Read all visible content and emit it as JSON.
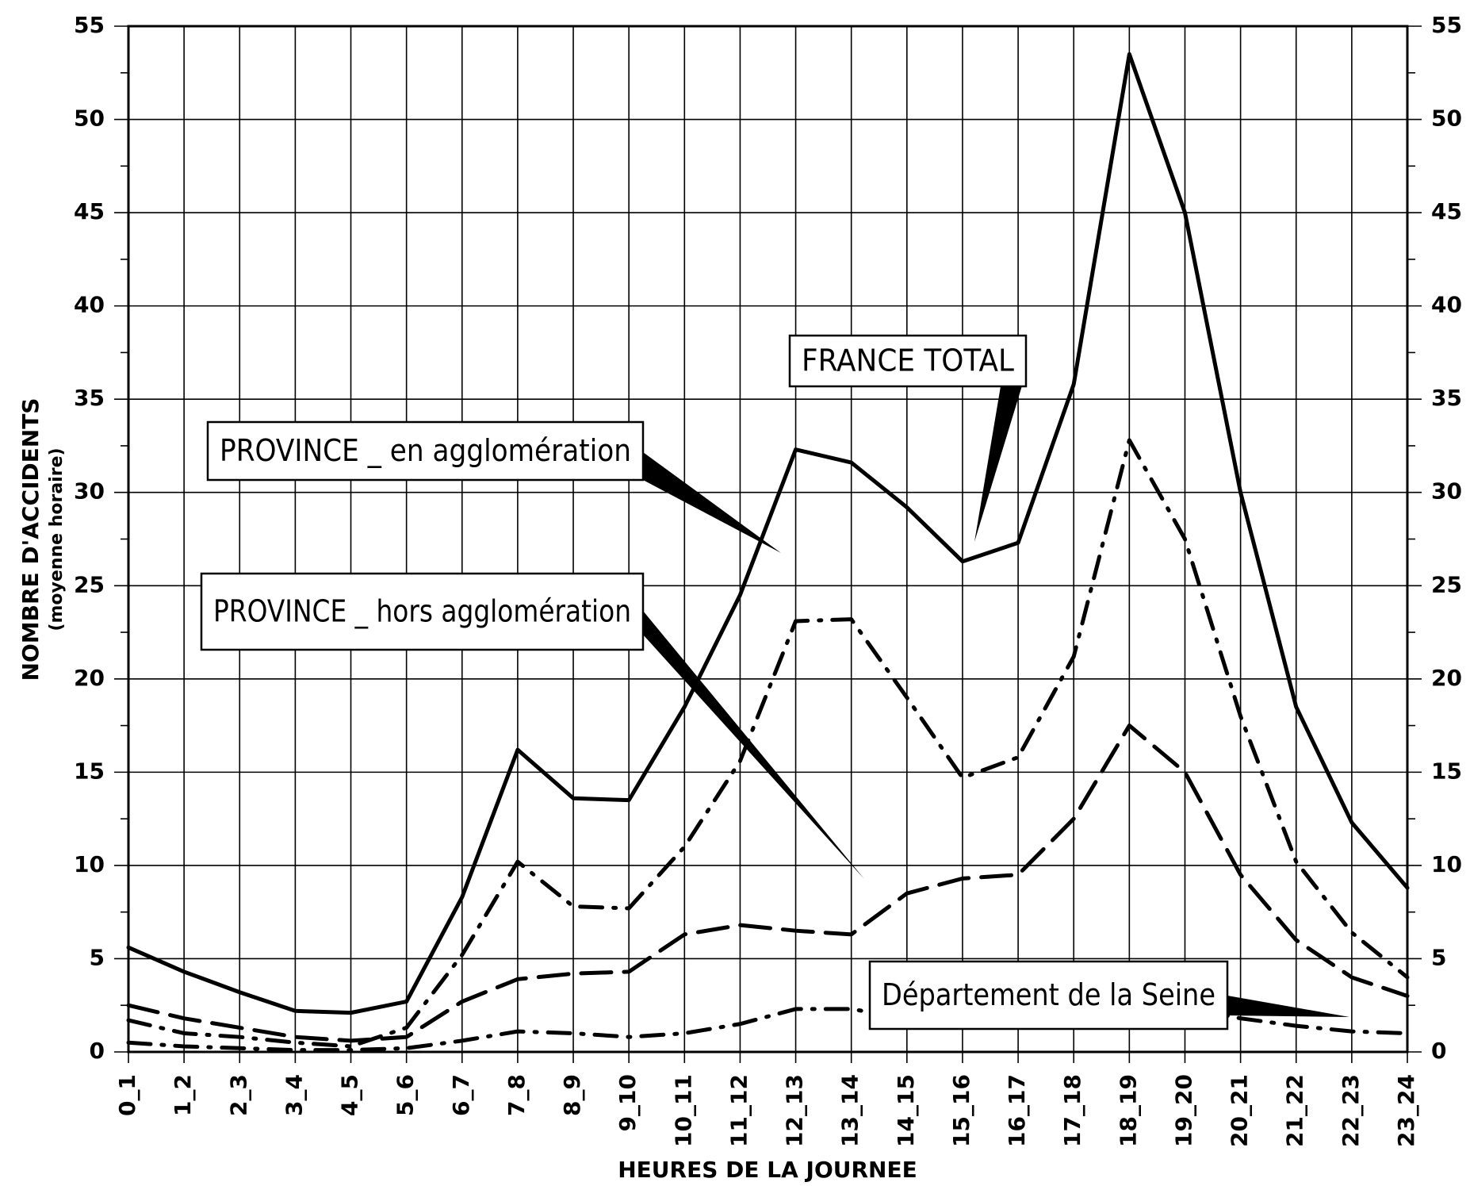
{
  "chart_data": {
    "type": "line",
    "x_label": "HEURES DE LA JOURNEE",
    "y_label": "NOMBRE D'ACCIDENTS",
    "y_sublabel": "(moyenne horaire)",
    "categories": [
      "0_1",
      "1_2",
      "2_3",
      "3_4",
      "4_5",
      "5_6",
      "6_7",
      "7_8",
      "8_9",
      "9_10",
      "10_11",
      "11_12",
      "12_13",
      "13_14",
      "14_15",
      "15_16",
      "16_17",
      "17_18",
      "18_19",
      "19_20",
      "20_21",
      "21_22",
      "22_23",
      "23_24"
    ],
    "series": [
      {
        "name": "FRANCE TOTAL",
        "color": "#000000",
        "dash": "solid",
        "values": [
          5.6,
          4.3,
          3.2,
          2.2,
          2.1,
          2.7,
          8.3,
          16.2,
          13.6,
          13.5,
          18.5,
          24.5,
          32.3,
          31.6,
          29.2,
          26.3,
          27.3,
          35.8,
          53.5,
          45,
          30,
          18.5,
          12.3,
          8.8
        ]
      },
      {
        "name": "PROVINCE _ en agglomération",
        "color": "#000000",
        "dash": "dashdot",
        "values": [
          1.7,
          1.0,
          0.8,
          0.5,
          0.3,
          1.3,
          5.2,
          10.2,
          7.8,
          7.7,
          11,
          15.6,
          23.1,
          23.2,
          19,
          14.7,
          15.8,
          21.2,
          32.8,
          27.5,
          18,
          10.2,
          6.4,
          4.0
        ]
      },
      {
        "name": "PROVINCE _ hors agglomération",
        "color": "#000000",
        "dash": "dashed",
        "values": [
          2.5,
          1.8,
          1.3,
          0.8,
          0.6,
          0.8,
          2.7,
          3.9,
          4.2,
          4.3,
          6.3,
          6.8,
          6.5,
          6.3,
          8.5,
          9.3,
          9.5,
          12.5,
          17.5,
          15,
          9.5,
          6.0,
          4.0,
          3.0
        ]
      },
      {
        "name": "Département de la Seine",
        "color": "#000000",
        "dash": "dashdot",
        "values": [
          0.5,
          0.3,
          0.2,
          0.1,
          0.1,
          0.2,
          0.6,
          1.1,
          1.0,
          0.8,
          1.0,
          1.5,
          2.3,
          2.3,
          1.8,
          1.6,
          1.8,
          2.6,
          3.3,
          2.4,
          1.8,
          1.4,
          1.1,
          1.0
        ]
      }
    ],
    "ylim": [
      0,
      55
    ],
    "yticks": [
      0,
      5,
      10,
      15,
      20,
      25,
      30,
      35,
      40,
      45,
      50,
      55
    ],
    "grid": true
  }
}
